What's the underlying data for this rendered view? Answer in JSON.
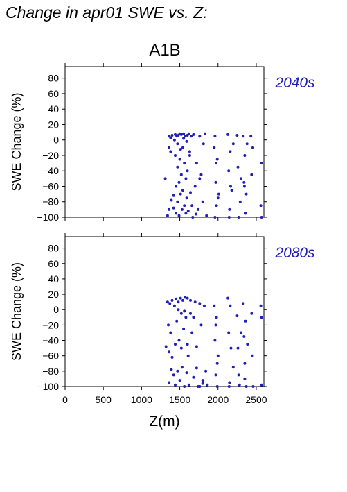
{
  "title": "Change in apr01 SWE vs. Z:",
  "subtitle": "A1B",
  "chart_data": [
    {
      "type": "scatter",
      "panel_label": "2040s",
      "ylabel": "SWE Change (%)",
      "xlabel": "",
      "xlim": [
        0,
        2600
      ],
      "ylim": [
        -100,
        95
      ],
      "x_ticks": [
        0,
        500,
        1000,
        1500,
        2000,
        2500
      ],
      "y_ticks": [
        -100,
        -80,
        -60,
        -40,
        -20,
        0,
        20,
        40,
        60,
        80
      ],
      "color": "#2020b8",
      "series": [
        {
          "x": [
            1310,
            1360,
            1360,
            1360,
            1380,
            1380,
            1400,
            1420,
            1420,
            1440,
            1440,
            1450,
            1450,
            1460,
            1470,
            1470,
            1480,
            1490,
            1490,
            1500,
            1500,
            1510,
            1520,
            1520,
            1530,
            1540,
            1540,
            1550,
            1560,
            1560,
            1570,
            1580,
            1580,
            1590,
            1600,
            1600,
            1610,
            1620,
            1630,
            1640,
            1650,
            1660,
            1680,
            1700,
            1720,
            1740,
            1760,
            1780,
            1800,
            1830,
            1850,
            1950,
            1960,
            1970,
            1980,
            1990,
            2010,
            2130,
            2140,
            2150,
            2160,
            2180,
            2250,
            2260,
            2290,
            2330,
            2340,
            2350,
            2360,
            2370,
            2430,
            2440,
            2560,
            2570
          ],
          "y": [
            -50,
            5,
            -10,
            -90,
            3,
            -15,
            6,
            -72,
            -88,
            7,
            -20,
            -60,
            -95,
            5,
            -35,
            -80,
            6,
            -55,
            -98,
            8,
            -25,
            -70,
            7,
            -45,
            -90,
            -10,
            -65,
            8,
            -30,
            -85,
            5,
            -50,
            -95,
            -75,
            6,
            -40,
            -92,
            8,
            -20,
            -68,
            5,
            -85,
            7,
            -60,
            -30,
            -90,
            5,
            -45,
            -80,
            8,
            -98,
            -10,
            5,
            -55,
            -85,
            -25,
            -70,
            7,
            -40,
            -90,
            -15,
            -65,
            6,
            -35,
            -80,
            5,
            -55,
            -20,
            -95,
            -70,
            5,
            -45,
            -85,
            -30
          ],
          "x_extra": [
            1340,
            1390,
            1430,
            1470,
            1510,
            1550,
            1590,
            1630,
            1670,
            1710,
            1760,
            1810,
            1960,
            1975,
            2000,
            2145,
            2165,
            2200,
            2270,
            2300,
            2345,
            2380,
            2455,
            2570
          ],
          "y_extra": [
            -98,
            -78,
            0,
            -5,
            -12,
            2,
            -2,
            -15,
            -100,
            -96,
            -50,
            -5,
            -100,
            -30,
            -75,
            -100,
            -60,
            -5,
            -100,
            -50,
            -60,
            -5,
            -10,
            -100
          ]
        }
      ]
    },
    {
      "type": "scatter",
      "panel_label": "2080s",
      "ylabel": "SWE Change (%)",
      "xlabel": "Z(m)",
      "xlim": [
        0,
        2600
      ],
      "ylim": [
        -100,
        95
      ],
      "x_ticks": [
        0,
        500,
        1000,
        1500,
        2000,
        2500
      ],
      "x_tick_labels": [
        "0",
        "500",
        "1000",
        "1500",
        "2000",
        "2500"
      ],
      "y_ticks": [
        -100,
        -80,
        -60,
        -40,
        -20,
        0,
        20,
        40,
        60,
        80
      ],
      "color": "#2020b8",
      "series": [
        {
          "x": [
            1320,
            1340,
            1350,
            1360,
            1370,
            1380,
            1390,
            1400,
            1420,
            1430,
            1440,
            1450,
            1460,
            1470,
            1480,
            1490,
            1500,
            1510,
            1520,
            1530,
            1540,
            1550,
            1560,
            1570,
            1580,
            1590,
            1600,
            1610,
            1620,
            1640,
            1660,
            1680,
            1700,
            1720,
            1740,
            1760,
            1780,
            1800,
            1820,
            1840,
            1860,
            1950,
            1960,
            1970,
            1980,
            1990,
            2000,
            2130,
            2140,
            2150,
            2160,
            2200,
            2250,
            2260,
            2280,
            2330,
            2340,
            2350,
            2360,
            2370,
            2440,
            2450,
            2560,
            2570
          ],
          "y": [
            -48,
            10,
            -20,
            -95,
            8,
            -30,
            -78,
            12,
            -85,
            5,
            -98,
            14,
            -15,
            -80,
            10,
            -40,
            -92,
            15,
            -5,
            -75,
            12,
            -25,
            -100,
            16,
            -10,
            -82,
            15,
            -60,
            -98,
            12,
            -30,
            -88,
            10,
            -76,
            -100,
            8,
            -20,
            -92,
            5,
            -80,
            -98,
            5,
            -40,
            -85,
            -10,
            -100,
            -60,
            15,
            -30,
            -95,
            5,
            -75,
            -8,
            -50,
            -98,
            8,
            -35,
            -90,
            -15,
            -100,
            -5,
            -60,
            5,
            -98
          ],
          "x_extra": [
            1360,
            1400,
            1440,
            1480,
            1520,
            1560,
            1600,
            1640,
            1680,
            1720,
            1760,
            1800,
            1970,
            1990,
            2145,
            2170,
            2270,
            2300,
            2350,
            2385,
            2460,
            2570
          ],
          "y_extra": [
            -55,
            -62,
            -45,
            0,
            -50,
            -2,
            -45,
            -5,
            -10,
            -48,
            -100,
            -96,
            -20,
            -70,
            -100,
            -50,
            -85,
            -30,
            -70,
            -45,
            -100,
            -10
          ]
        }
      ]
    }
  ]
}
